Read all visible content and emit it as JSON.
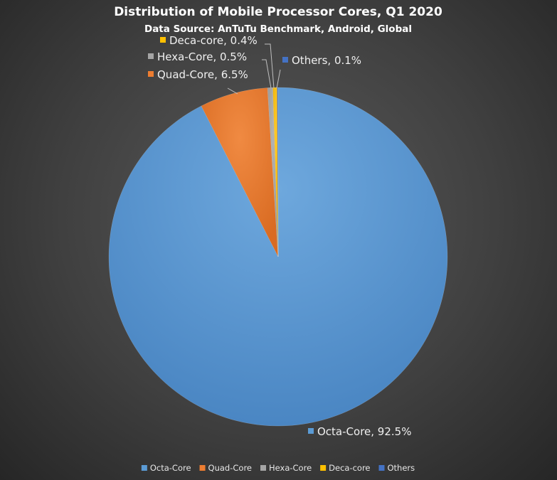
{
  "chart_data": {
    "type": "pie",
    "title": "Distribution of Mobile Processor Cores, Q1 2020",
    "subtitle": "Data Source: AnTuTu Benchmark, Android, Global",
    "slices": [
      {
        "name": "Octa-Core",
        "value": 92.5,
        "label": "Octa-Core, 92.5%",
        "color": "#5b9bd5"
      },
      {
        "name": "Quad-Core",
        "value": 6.5,
        "label": "Quad-Core, 6.5%",
        "color": "#ed7d31"
      },
      {
        "name": "Hexa-Core",
        "value": 0.5,
        "label": "Hexa-Core, 0.5%",
        "color": "#a5a5a5"
      },
      {
        "name": "Deca-core",
        "value": 0.4,
        "label": "Deca-core, 0.4%",
        "color": "#ffc000"
      },
      {
        "name": "Others",
        "value": 0.1,
        "label": "Others, 0.1%",
        "color": "#4472c4"
      }
    ],
    "legend": {
      "position": "bottom",
      "entries": [
        "Octa-Core",
        "Quad-Core",
        "Hexa-Core",
        "Deca-core",
        "Others"
      ]
    }
  }
}
